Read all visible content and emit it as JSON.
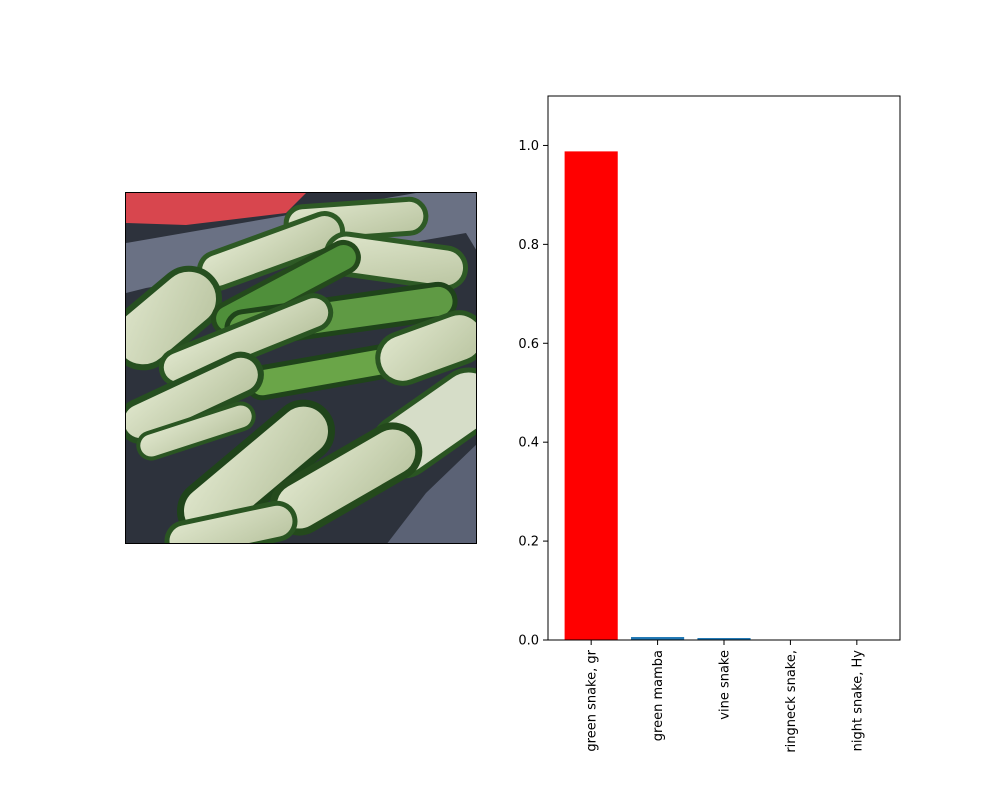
{
  "image_panel": {
    "subject": "sliced zucchini in a container",
    "colors": {
      "container": "#5b6275",
      "zucchini_skin": "#2f6a2a",
      "zucchini_flesh": "#cfd8b8",
      "lid": "#d8464e"
    }
  },
  "chart_data": {
    "type": "bar",
    "categories": [
      "green snake, gr",
      "green mamba",
      "vine snake",
      "ringneck snake,",
      "night snake, Hy"
    ],
    "values": [
      0.988,
      0.006,
      0.004,
      0.0005,
      0.0003
    ],
    "bar_colors": [
      "#ff0000",
      "#1f77b4",
      "#1f77b4",
      "#1f77b4",
      "#1f77b4"
    ],
    "ylim": [
      0,
      1.1
    ],
    "yticks": [
      "0.0",
      "0.2",
      "0.4",
      "0.6",
      "0.8",
      "1.0"
    ],
    "ytick_values": [
      0,
      0.2,
      0.4,
      0.6,
      0.8,
      1.0
    ],
    "title": "",
    "xlabel": "",
    "ylabel": ""
  }
}
